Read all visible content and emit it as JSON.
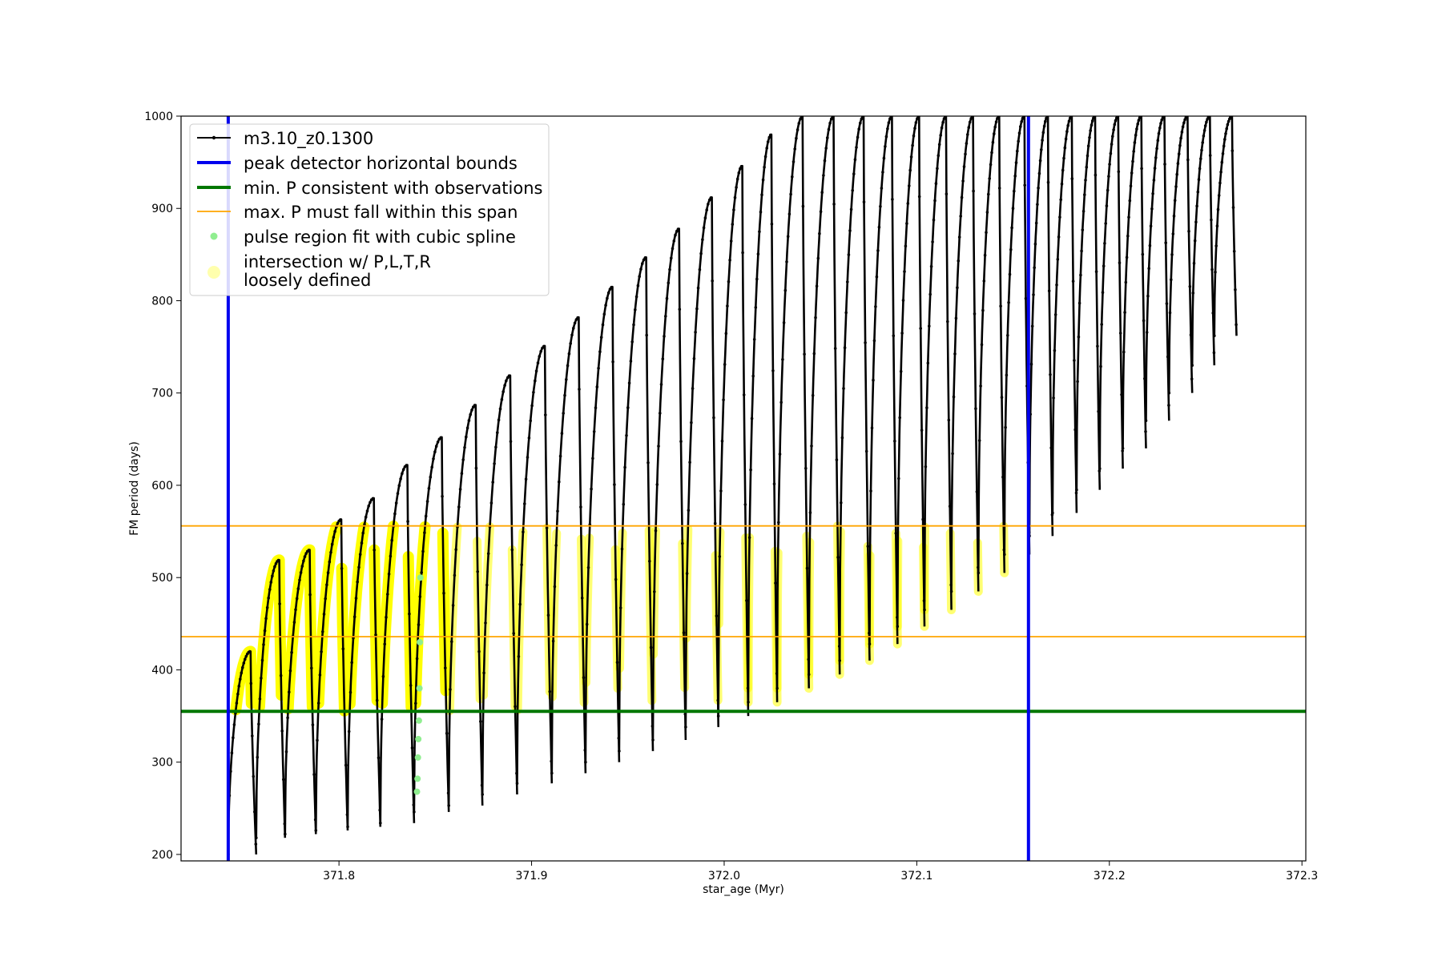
{
  "chart_data": {
    "type": "line",
    "title": "",
    "xlabel": "star_age (Myr)",
    "ylabel": "FM period (days)",
    "xlim": [
      371.718,
      372.302
    ],
    "ylim": [
      193,
      1000
    ],
    "xticks": [
      371.8,
      371.9,
      372.0,
      372.1,
      372.2,
      372.3
    ],
    "xtick_labels": [
      "371.8",
      "371.9",
      "372.0",
      "372.1",
      "372.2",
      "372.3"
    ],
    "yticks": [
      200,
      300,
      400,
      500,
      600,
      700,
      800,
      900,
      1000
    ],
    "ytick_labels": [
      "200",
      "300",
      "400",
      "500",
      "600",
      "700",
      "800",
      "900",
      "1000"
    ],
    "grid": false,
    "legend_position": "top-left",
    "pulses": [
      {
        "x_start": 371.7425,
        "x_end": 371.757,
        "min": 200,
        "peak": 420
      },
      {
        "x_start": 371.757,
        "x_end": 371.772,
        "min": 218,
        "peak": 519
      },
      {
        "x_start": 371.772,
        "x_end": 371.788,
        "min": 222,
        "peak": 530
      },
      {
        "x_start": 371.788,
        "x_end": 371.8045,
        "min": 226,
        "peak": 563
      },
      {
        "x_start": 371.8045,
        "x_end": 371.8215,
        "min": 230,
        "peak": 586
      },
      {
        "x_start": 371.8215,
        "x_end": 371.839,
        "min": 234,
        "peak": 622
      },
      {
        "x_start": 371.839,
        "x_end": 371.857,
        "min": 246,
        "peak": 652
      },
      {
        "x_start": 371.857,
        "x_end": 371.8745,
        "min": 253,
        "peak": 687
      },
      {
        "x_start": 371.8745,
        "x_end": 371.8925,
        "min": 265,
        "peak": 719
      },
      {
        "x_start": 371.8925,
        "x_end": 371.9105,
        "min": 277,
        "peak": 751
      },
      {
        "x_start": 371.9105,
        "x_end": 371.928,
        "min": 288,
        "peak": 782
      },
      {
        "x_start": 371.928,
        "x_end": 371.9455,
        "min": 300,
        "peak": 815
      },
      {
        "x_start": 371.9455,
        "x_end": 371.963,
        "min": 312,
        "peak": 847
      },
      {
        "x_start": 371.963,
        "x_end": 371.98,
        "min": 324,
        "peak": 878
      },
      {
        "x_start": 371.98,
        "x_end": 371.997,
        "min": 338,
        "peak": 912
      },
      {
        "x_start": 371.997,
        "x_end": 372.0125,
        "min": 350,
        "peak": 946
      },
      {
        "x_start": 372.0125,
        "x_end": 372.0275,
        "min": 365,
        "peak": 980
      },
      {
        "x_start": 372.0275,
        "x_end": 372.044,
        "min": 380,
        "peak": 1000
      },
      {
        "x_start": 372.044,
        "x_end": 372.06,
        "min": 395,
        "peak": 1000
      },
      {
        "x_start": 372.06,
        "x_end": 372.0755,
        "min": 410,
        "peak": 1000
      },
      {
        "x_start": 372.0755,
        "x_end": 372.09,
        "min": 428,
        "peak": 1000
      },
      {
        "x_start": 372.09,
        "x_end": 372.104,
        "min": 447,
        "peak": 1000
      },
      {
        "x_start": 372.104,
        "x_end": 372.118,
        "min": 465,
        "peak": 1000
      },
      {
        "x_start": 372.118,
        "x_end": 372.132,
        "min": 485,
        "peak": 1000
      },
      {
        "x_start": 372.132,
        "x_end": 372.1455,
        "min": 505,
        "peak": 1000
      },
      {
        "x_start": 372.1455,
        "x_end": 372.1585,
        "min": 525,
        "peak": 1000
      },
      {
        "x_start": 372.1585,
        "x_end": 372.1705,
        "min": 545,
        "peak": 1000
      },
      {
        "x_start": 372.1705,
        "x_end": 372.183,
        "min": 570,
        "peak": 1000
      },
      {
        "x_start": 372.183,
        "x_end": 372.195,
        "min": 595,
        "peak": 1000
      },
      {
        "x_start": 372.195,
        "x_end": 372.207,
        "min": 618,
        "peak": 1000
      },
      {
        "x_start": 372.207,
        "x_end": 372.219,
        "min": 640,
        "peak": 1000
      },
      {
        "x_start": 372.219,
        "x_end": 372.231,
        "min": 670,
        "peak": 1000
      },
      {
        "x_start": 372.231,
        "x_end": 372.243,
        "min": 700,
        "peak": 1000
      },
      {
        "x_start": 372.243,
        "x_end": 372.2545,
        "min": 730,
        "peak": 1000
      },
      {
        "x_start": 372.2545,
        "x_end": 372.266,
        "min": 762,
        "peak": 1000
      }
    ],
    "peak_detector_bounds": [
      371.7425,
      372.158
    ],
    "min_period_observed": 355,
    "max_period_span": [
      436,
      556
    ],
    "spline_region": {
      "x": [
        371.8405,
        371.8408,
        371.841,
        371.8412,
        371.8415,
        371.8418,
        371.842,
        371.8423
      ],
      "y": [
        268,
        282,
        305,
        325,
        345,
        380,
        430,
        500
      ]
    },
    "series": [
      {
        "name": "m3.10_z0.1300",
        "color": "#000000",
        "kind": "line-marker"
      },
      {
        "name": "peak detector horizontal bounds",
        "color": "#0000ee",
        "kind": "line-thick"
      },
      {
        "name": "min. P consistent with observations",
        "color": "#007700",
        "kind": "line-thick"
      },
      {
        "name": "max. P must fall within this span",
        "color": "#ffa500",
        "kind": "line-thin"
      },
      {
        "name": "pulse region fit with cubic spline",
        "color": "#90ee90",
        "kind": "dot"
      },
      {
        "name": "intersection w/ P,L,T,R",
        "name2": "loosely defined",
        "color": "#ffff99",
        "kind": "big-dot"
      }
    ]
  }
}
